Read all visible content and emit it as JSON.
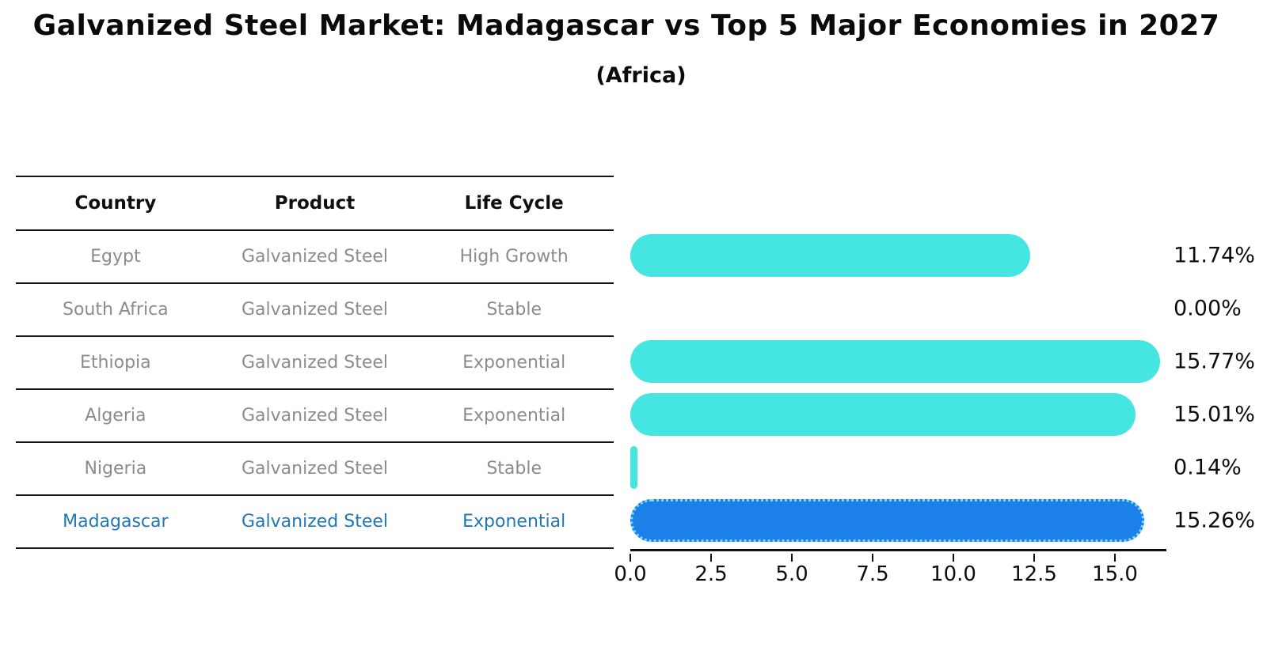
{
  "title": "Galvanized Steel Market: Madagascar vs Top 5 Major Economies in 2027",
  "subtitle": "(Africa)",
  "table": {
    "headers": [
      "Country",
      "Product",
      "Life Cycle"
    ],
    "rows": [
      {
        "country": "Egypt",
        "product": "Galvanized Steel",
        "life_cycle": "High Growth",
        "highlight": false
      },
      {
        "country": "South Africa",
        "product": "Galvanized Steel",
        "life_cycle": "Stable",
        "highlight": false
      },
      {
        "country": "Ethiopia",
        "product": "Galvanized Steel",
        "life_cycle": "Exponential",
        "highlight": false
      },
      {
        "country": "Algeria",
        "product": "Galvanized Steel",
        "life_cycle": "Exponential",
        "highlight": false
      },
      {
        "country": "Nigeria",
        "product": "Galvanized Steel",
        "life_cycle": "Stable",
        "highlight": false
      },
      {
        "country": "Madagascar",
        "product": "Galvanized Steel",
        "life_cycle": "Exponential",
        "highlight": true
      }
    ]
  },
  "chart_data": {
    "type": "bar",
    "orientation": "horizontal",
    "title": "Galvanized Steel Market: Madagascar vs Top 5 Major Economies in 2027",
    "subtitle": "(Africa)",
    "categories": [
      "Egypt",
      "South Africa",
      "Ethiopia",
      "Algeria",
      "Nigeria",
      "Madagascar"
    ],
    "values": [
      11.74,
      0.0,
      15.77,
      15.01,
      0.14,
      15.26
    ],
    "value_labels": [
      "11.74%",
      "0.00%",
      "15.77%",
      "15.01%",
      "0.14%",
      "15.26%"
    ],
    "xticks": [
      "0.0",
      "2.5",
      "5.0",
      "7.5",
      "10.0",
      "12.5",
      "15.0"
    ],
    "xtick_values": [
      0,
      2.5,
      5,
      7.5,
      10,
      12.5,
      15
    ],
    "xlim": [
      0,
      16.6
    ],
    "grid": false,
    "legend": "none",
    "highlight_index": 5,
    "bar_color": "#45E6E1",
    "highlight_bar_color": "#1B80E8",
    "highlight_border_color": "#7ED7F5",
    "highlight_text_color": "#1F77B4"
  }
}
